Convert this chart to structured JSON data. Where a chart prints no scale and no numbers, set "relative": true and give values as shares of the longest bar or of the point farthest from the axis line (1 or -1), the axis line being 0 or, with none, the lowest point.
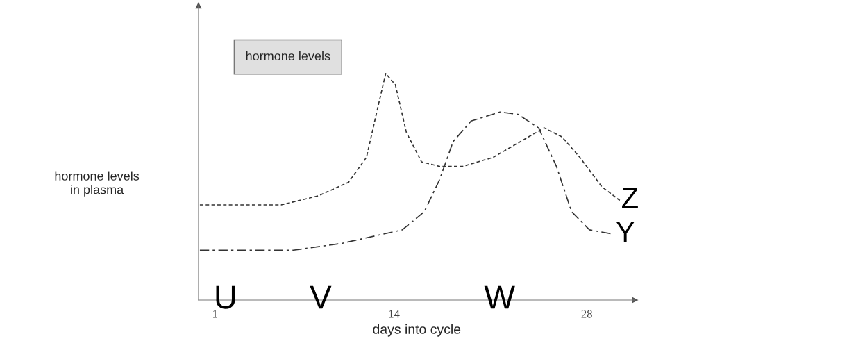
{
  "chart_data": {
    "type": "line",
    "relative": true,
    "xlabel": "days into cycle",
    "ylabel": "hormone levels\nin plasma",
    "xlim": [
      -0.2,
      31.5
    ],
    "xticks": [
      1,
      14,
      28
    ],
    "tick_labels": "x",
    "grid": false,
    "legend": false,
    "annotations": [
      "hormone levels",
      "U",
      "V",
      "W"
    ],
    "series": [
      {
        "name": "Z",
        "color": "#333333",
        "line_style": "dashed",
        "x": [
          -0.1,
          5.8,
          8.5,
          10.7,
          12.0,
          12.9,
          13.4,
          14.1,
          14.9,
          16.0,
          17.3,
          19.0,
          21.2,
          23.2,
          24.9,
          26.2,
          27.5,
          29.1,
          30.4
        ],
        "values": [
          0.42,
          0.42,
          0.46,
          0.52,
          0.63,
          0.87,
          1.0,
          0.95,
          0.74,
          0.61,
          0.59,
          0.59,
          0.63,
          0.7,
          0.76,
          0.72,
          0.63,
          0.5,
          0.44
        ]
      },
      {
        "name": "Y",
        "color": "#333333",
        "line_style": "dashdot",
        "x": [
          -0.1,
          6.7,
          10.2,
          14.6,
          16.2,
          17.3,
          18.3,
          19.6,
          21.7,
          23.0,
          24.5,
          25.8,
          26.9,
          28.2,
          30.0
        ],
        "values": [
          0.22,
          0.22,
          0.25,
          0.31,
          0.39,
          0.53,
          0.7,
          0.79,
          0.83,
          0.82,
          0.76,
          0.59,
          0.39,
          0.31,
          0.29
        ]
      }
    ]
  }
}
